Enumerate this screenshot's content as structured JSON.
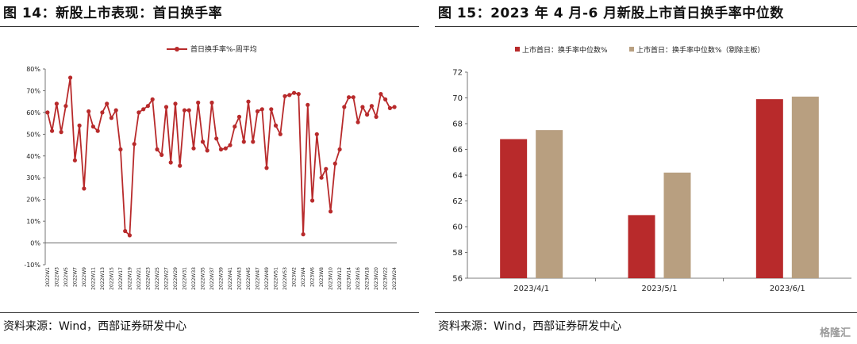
{
  "left": {
    "title": "图 14：新股上市表现：首日换手率",
    "source": "资料来源：Wind，西部证券研发中心"
  },
  "right": {
    "title": "图 15：2023 年 4 月-6 月新股上市首日换手率中位数",
    "source": "资料来源：Wind，西部证券研发中心"
  },
  "watermark": "格隆汇",
  "colors": {
    "red": "#b82a2b",
    "tan": "#b89f80",
    "axis": "#555555"
  },
  "chart_data": [
    {
      "type": "line",
      "title": "",
      "legend": "top-center",
      "series": [
        {
          "name": "首日换手率%-周平均",
          "values": [
            60,
            51.5,
            64,
            51,
            63,
            76,
            38,
            54,
            25,
            60.5,
            53.5,
            51.5,
            60,
            64,
            57.5,
            61,
            43,
            5.5,
            3.5,
            45.5,
            60,
            61.5,
            63,
            66,
            43,
            40.5,
            62.5,
            37,
            64,
            35.5,
            61,
            61,
            43.5,
            64.5,
            46.5,
            42.5,
            64.5,
            48,
            43,
            43.5,
            45,
            53.5,
            58,
            46.5,
            65,
            46.5,
            60.5,
            61.5,
            34.5,
            61.5,
            54,
            50,
            67.5,
            68,
            69,
            68.5,
            4,
            63.5,
            19.5,
            50,
            30,
            34,
            14.5,
            36.5,
            43,
            62.5,
            67,
            67,
            55.5,
            62.5,
            59,
            63,
            58,
            68.5,
            66,
            62,
            62.5
          ]
        }
      ],
      "x_tick_labels": [
        "2022W1",
        "2022W3",
        "2022W5",
        "2022W7",
        "2022W9",
        "2022W11",
        "2022W13",
        "2022W15",
        "2022W17",
        "2022W19",
        "2022W21",
        "2022W23",
        "2022W25",
        "2022W27",
        "2022W29",
        "2022W31",
        "2022W33",
        "2022W35",
        "2022W37",
        "2022W39",
        "2022W41",
        "2022W43",
        "2022W45",
        "2022W47",
        "2022W49",
        "2022W51",
        "2022W53",
        "2023W2",
        "2023W4",
        "2023W6",
        "2023W8",
        "2023W10",
        "2023W12",
        "2023W14",
        "2023W16",
        "2023W18",
        "2023W20",
        "2023W22",
        "2023W24"
      ],
      "y_tick_labels": [
        "-10%",
        "0%",
        "10%",
        "20%",
        "30%",
        "40%",
        "50%",
        "60%",
        "70%",
        "80%"
      ],
      "ylim": [
        -10,
        80
      ],
      "grid": false
    },
    {
      "type": "bar",
      "title": "",
      "legend": "top-center",
      "categories": [
        "2023/4/1",
        "2023/5/1",
        "2023/6/1"
      ],
      "series": [
        {
          "name": "上市首日：换手率中位数%",
          "values": [
            66.8,
            60.9,
            69.9
          ]
        },
        {
          "name": "上市首日：换手率中位数%（剔除主板）",
          "values": [
            67.5,
            64.2,
            70.1
          ]
        }
      ],
      "y_tick_labels": [
        "56",
        "58",
        "60",
        "62",
        "64",
        "66",
        "68",
        "70",
        "72"
      ],
      "ylim": [
        56,
        72
      ],
      "grid": false
    }
  ]
}
